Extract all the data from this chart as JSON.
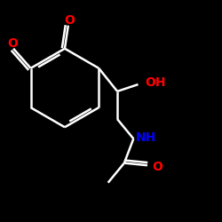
{
  "background_color": "#000000",
  "bond_color": "#ffffff",
  "atom_colors": {
    "O": "#ff0000",
    "N": "#0000ff"
  },
  "bond_width": 1.8,
  "figsize": [
    2.5,
    2.5
  ],
  "dpi": 100
}
